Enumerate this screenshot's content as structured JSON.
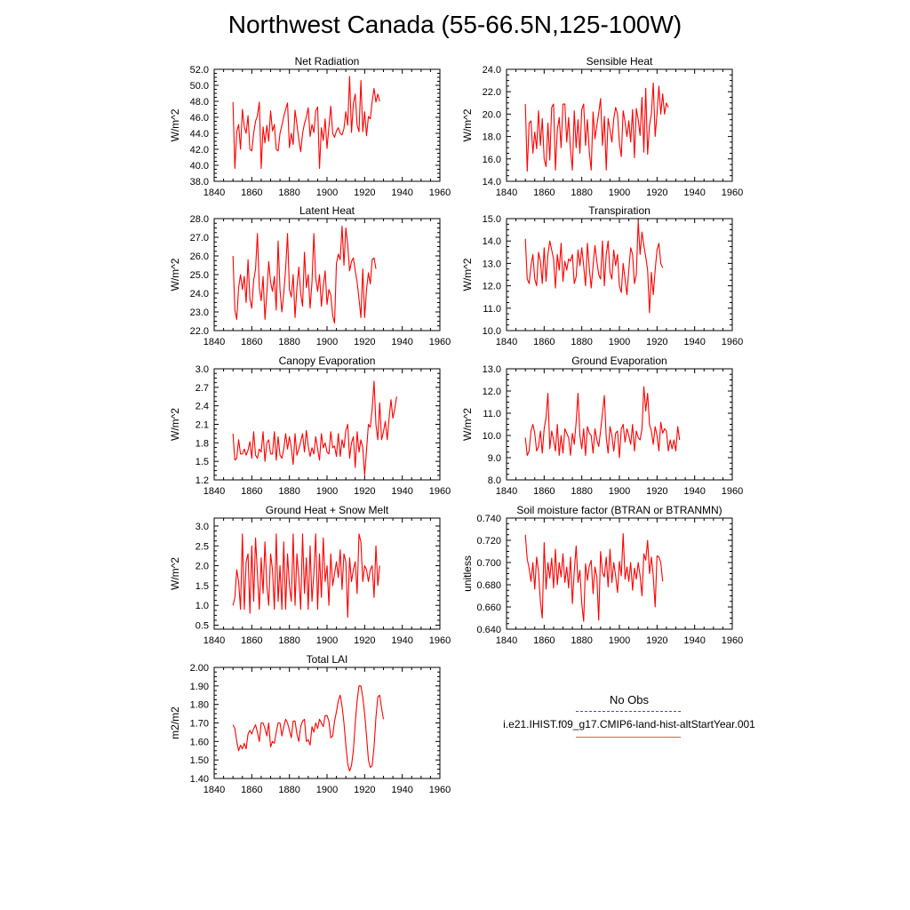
{
  "title": "Northwest Canada (55-66.5N,125-100W)",
  "legend": {
    "obs_label": "No Obs",
    "obs_color": "#4a4ab0",
    "case_label": "i.e21.IHIST.f09_g17.CMIP6-land-hist-altStartYear.001",
    "case_color": "#e85a5a"
  },
  "line_color": "#ff0000",
  "chart_data": [
    {
      "type": "line",
      "title": "Net Radiation",
      "ylabel": "W/m^2",
      "xlim": [
        1840,
        1960
      ],
      "xticks": [
        1840,
        1860,
        1880,
        1900,
        1920,
        1940,
        1960
      ],
      "ylim": [
        38,
        52
      ],
      "yticks": [
        "38.0",
        "40.0",
        "42.0",
        "44.0",
        "46.0",
        "48.0",
        "50.0",
        "52.0"
      ],
      "x_start": 1850,
      "values": [
        47.9,
        39.6,
        44.2,
        45.1,
        42.0,
        47.0,
        44.8,
        44.0,
        46.2,
        42.0,
        41.8,
        44.0,
        45.5,
        46.2,
        47.9,
        39.6,
        44.8,
        42.8,
        45.0,
        43.0,
        46.8,
        44.3,
        45.1,
        42.0,
        41.8,
        44.0,
        45.0,
        46.1,
        47.0,
        47.8,
        42.2,
        44.0,
        42.6,
        46.9,
        45.1,
        43.2,
        41.7,
        44.0,
        45.2,
        46.0,
        47.2,
        43.6,
        45.1,
        44.1,
        46.8,
        47.3,
        39.6,
        44.7,
        43.1,
        45.8,
        42.1,
        44.8,
        47.4,
        44.0,
        43.5,
        44.3,
        44.7,
        44.0,
        43.8,
        44.6,
        46.7,
        45.0,
        51.1,
        44.1,
        47.7,
        48.9,
        45.0,
        44.2,
        50.6,
        44.2,
        46.7,
        43.7,
        46.1,
        45.8,
        48.0,
        49.6,
        47.9,
        48.9,
        48.0
      ]
    },
    {
      "type": "line",
      "title": "Sensible Heat",
      "ylabel": "W/m^2",
      "xlim": [
        1840,
        1960
      ],
      "xticks": [
        1840,
        1860,
        1880,
        1900,
        1920,
        1940,
        1960
      ],
      "ylim": [
        14,
        24
      ],
      "yticks": [
        "14.0",
        "16.0",
        "18.0",
        "20.0",
        "22.0",
        "24.0"
      ],
      "x_start": 1850,
      "values": [
        20.9,
        14.9,
        19.2,
        19.4,
        16.5,
        18.4,
        16.9,
        20.3,
        17.2,
        19.6,
        16.0,
        15.3,
        19.2,
        15.9,
        20.6,
        20.9,
        15.0,
        18.6,
        19.7,
        17.0,
        20.9,
        20.9,
        17.5,
        19.7,
        16.8,
        15.0,
        20.3,
        17.0,
        19.5,
        16.5,
        20.4,
        20.9,
        17.2,
        19.5,
        16.6,
        15.0,
        20.2,
        17.8,
        19.0,
        20.1,
        21.4,
        17.2,
        19.8,
        15.0,
        19.6,
        18.6,
        17.5,
        19.6,
        20.6,
        20.0,
        17.4,
        16.2,
        20.3,
        19.3,
        18.0,
        19.4,
        17.5,
        20.4,
        16.1,
        20.5,
        19.5,
        18.1,
        21.5,
        16.6,
        22.3,
        16.4,
        19.0,
        20.0,
        22.8,
        18.0,
        20.0,
        22.5,
        20.0,
        21.8,
        20.0,
        21.0,
        20.6
      ]
    },
    {
      "type": "line",
      "title": "Latent Heat",
      "ylabel": "W/m^2",
      "xlim": [
        1840,
        1960
      ],
      "xticks": [
        1840,
        1860,
        1880,
        1900,
        1920,
        1940,
        1960
      ],
      "ylim": [
        22,
        28
      ],
      "yticks": [
        "22.0",
        "23.0",
        "24.0",
        "25.0",
        "26.0",
        "27.0",
        "28.0"
      ],
      "x_start": 1850,
      "values": [
        26.0,
        23.1,
        22.6,
        24.3,
        25.0,
        24.2,
        24.9,
        23.5,
        25.8,
        23.7,
        23.2,
        24.7,
        25.3,
        27.2,
        24.3,
        23.6,
        24.9,
        22.6,
        24.0,
        25.7,
        24.6,
        24.1,
        24.9,
        23.1,
        26.8,
        24.2,
        23.0,
        24.0,
        25.3,
        27.2,
        24.2,
        23.8,
        25.0,
        22.7,
        24.3,
        25.4,
        24.0,
        23.3,
        26.2,
        24.3,
        25.0,
        23.2,
        24.6,
        27.2,
        24.8,
        24.1,
        25.0,
        23.3,
        24.4,
        25.2,
        23.4,
        24.2,
        23.9,
        22.8,
        22.4,
        25.6,
        26.1,
        25.8,
        27.6,
        25.5,
        27.5,
        26.6,
        25.2,
        25.7,
        25.9,
        25.2,
        24.6,
        23.7,
        22.7,
        25.3,
        22.7,
        24.2,
        25.1,
        24.5,
        25.8,
        25.9,
        25.3
      ]
    },
    {
      "type": "line",
      "title": "Transpiration",
      "ylabel": "W/m^2",
      "xlim": [
        1840,
        1960
      ],
      "xticks": [
        1840,
        1860,
        1880,
        1900,
        1920,
        1940,
        1960
      ],
      "ylim": [
        10,
        15
      ],
      "yticks": [
        "10.0",
        "11.0",
        "12.0",
        "13.0",
        "14.0",
        "15.0"
      ],
      "x_start": 1850,
      "values": [
        14.1,
        12.3,
        12.1,
        12.9,
        13.4,
        12.3,
        12.0,
        13.5,
        13.1,
        12.1,
        13.7,
        12.2,
        13.4,
        14.0,
        13.6,
        13.2,
        11.9,
        13.4,
        12.7,
        13.9,
        12.2,
        13.1,
        12.7,
        13.2,
        13.1,
        13.4,
        12.1,
        12.4,
        13.6,
        12.9,
        13.7,
        12.9,
        12.0,
        13.9,
        12.8,
        11.9,
        12.9,
        13.8,
        13.1,
        12.5,
        12.3,
        14.0,
        12.0,
        13.4,
        14.0,
        12.6,
        12.3,
        13.6,
        12.9,
        13.4,
        12.0,
        11.7,
        13.0,
        12.3,
        11.6,
        12.7,
        13.7,
        13.4,
        12.1,
        12.5,
        14.9,
        13.4,
        14.4,
        13.8,
        13.3,
        12.7,
        10.8,
        12.6,
        11.6,
        12.7,
        13.6,
        13.9,
        13.0,
        12.8
      ]
    },
    {
      "type": "line",
      "title": "Canopy Evaporation",
      "ylabel": "W/m^2",
      "xlim": [
        1840,
        1960
      ],
      "xticks": [
        1840,
        1860,
        1880,
        1900,
        1920,
        1940,
        1960
      ],
      "ylim": [
        1.2,
        3.0
      ],
      "yticks": [
        "1.2",
        "1.5",
        "1.8",
        "2.1",
        "2.4",
        "2.7",
        "3.0"
      ],
      "x_start": 1850,
      "values": [
        1.95,
        1.52,
        1.55,
        1.85,
        1.62,
        1.62,
        1.7,
        1.6,
        1.68,
        1.82,
        1.55,
        1.98,
        1.6,
        1.55,
        1.7,
        1.65,
        1.98,
        1.5,
        1.8,
        1.85,
        1.62,
        1.62,
        1.98,
        1.52,
        1.9,
        1.6,
        1.55,
        1.7,
        1.95,
        1.7,
        1.9,
        1.72,
        1.45,
        1.95,
        1.6,
        1.7,
        1.82,
        1.95,
        1.65,
        2.0,
        1.75,
        1.58,
        1.72,
        1.62,
        1.9,
        1.7,
        1.52,
        1.95,
        1.72,
        1.8,
        1.65,
        1.62,
        1.98,
        1.72,
        1.75,
        1.58,
        1.95,
        1.58,
        1.85,
        1.72,
        2.0,
        2.1,
        1.55,
        1.8,
        1.9,
        1.4,
        1.98,
        1.65,
        1.85,
        1.72,
        1.28,
        1.68,
        2.1,
        2.05,
        2.35,
        2.8,
        2.1,
        1.85,
        2.45,
        1.85,
        1.98,
        2.15,
        1.85,
        2.2,
        2.5,
        2.2,
        2.35,
        2.55
      ]
    },
    {
      "type": "line",
      "title": "Ground Evaporation",
      "ylabel": "W/m^2",
      "xlim": [
        1840,
        1960
      ],
      "xticks": [
        1840,
        1860,
        1880,
        1900,
        1920,
        1940,
        1960
      ],
      "ylim": [
        8,
        13
      ],
      "yticks": [
        "8.0",
        "9.0",
        "10.0",
        "11.0",
        "12.0",
        "13.0"
      ],
      "x_start": 1850,
      "values": [
        9.9,
        9.1,
        9.3,
        10.2,
        10.5,
        10.1,
        9.3,
        9.5,
        10.2,
        9.2,
        10.3,
        10.8,
        11.9,
        9.4,
        10.2,
        9.8,
        9.3,
        10.5,
        9.1,
        10.0,
        9.2,
        10.3,
        10.1,
        9.9,
        9.1,
        10.1,
        9.6,
        10.6,
        11.9,
        10.0,
        9.4,
        10.3,
        9.1,
        10.4,
        10.1,
        10.0,
        9.2,
        10.3,
        9.8,
        9.5,
        10.2,
        11.0,
        11.8,
        9.9,
        9.2,
        10.4,
        10.0,
        9.3,
        10.1,
        10.2,
        9.0,
        10.3,
        10.5,
        9.7,
        10.3,
        10.0,
        9.6,
        10.5,
        9.3,
        10.2,
        9.9,
        9.8,
        10.3,
        12.2,
        11.1,
        11.9,
        10.5,
        10.2,
        9.6,
        10.4,
        10.0,
        9.3,
        10.6,
        10.1,
        10.3,
        10.2,
        9.3,
        9.8,
        9.4,
        9.8,
        9.3,
        10.4,
        9.8
      ]
    },
    {
      "type": "line",
      "title": "Ground Heat + Snow Melt",
      "ylabel": "W/m^2",
      "xlim": [
        1840,
        1960
      ],
      "xticks": [
        1840,
        1860,
        1880,
        1900,
        1920,
        1940,
        1960
      ],
      "ylim": [
        0.4,
        3.2
      ],
      "yticks": [
        "0.5",
        "1.0",
        "1.5",
        "2.0",
        "2.5",
        "3.0"
      ],
      "x_start": 1850,
      "values": [
        1.0,
        1.2,
        1.9,
        1.6,
        0.9,
        2.8,
        0.9,
        2.1,
        2.3,
        0.8,
        2.5,
        1.1,
        2.7,
        1.8,
        0.9,
        2.2,
        1.3,
        2.6,
        1.5,
        1.0,
        2.3,
        1.9,
        0.9,
        2.8,
        1.1,
        2.0,
        0.9,
        2.6,
        0.9,
        2.3,
        1.5,
        1.1,
        2.8,
        1.0,
        2.3,
        1.7,
        0.9,
        2.8,
        1.3,
        2.2,
        0.9,
        2.5,
        1.1,
        1.8,
        2.8,
        0.9,
        2.3,
        1.2,
        2.7,
        1.6,
        2.0,
        1.0,
        2.3,
        1.5,
        1.8,
        2.1,
        1.7,
        2.4,
        1.4,
        2.3,
        2.1,
        0.7,
        2.2,
        1.6,
        1.9,
        2.1,
        1.3,
        2.8,
        2.6,
        1.6,
        2.0,
        1.9,
        1.6,
        1.9,
        2.0,
        1.2,
        2.5,
        1.5,
        2.0
      ]
    },
    {
      "type": "line",
      "title": "Soil moisture factor (BTRAN or BTRANMN)",
      "ylabel": "unitless",
      "xlim": [
        1840,
        1960
      ],
      "xticks": [
        1840,
        1860,
        1880,
        1900,
        1920,
        1940,
        1960
      ],
      "ylim": [
        0.64,
        0.74
      ],
      "yticks": [
        "0.640",
        "0.660",
        "0.680",
        "0.700",
        "0.720",
        "0.740"
      ],
      "x_start": 1850,
      "values": [
        0.725,
        0.703,
        0.695,
        0.683,
        0.7,
        0.676,
        0.705,
        0.692,
        0.665,
        0.65,
        0.718,
        0.676,
        0.7,
        0.686,
        0.704,
        0.677,
        0.712,
        0.68,
        0.7,
        0.687,
        0.708,
        0.682,
        0.696,
        0.677,
        0.705,
        0.663,
        0.692,
        0.715,
        0.682,
        0.693,
        0.663,
        0.647,
        0.699,
        0.684,
        0.697,
        0.702,
        0.672,
        0.696,
        0.687,
        0.648,
        0.71,
        0.691,
        0.687,
        0.705,
        0.678,
        0.712,
        0.682,
        0.7,
        0.688,
        0.673,
        0.701,
        0.688,
        0.726,
        0.685,
        0.696,
        0.683,
        0.7,
        0.675,
        0.695,
        0.685,
        0.7,
        0.688,
        0.67,
        0.708,
        0.702,
        0.72,
        0.69,
        0.705,
        0.688,
        0.66,
        0.706,
        0.705,
        0.7,
        0.683
      ]
    },
    {
      "type": "line",
      "title": "Total LAI",
      "ylabel": "m2/m2",
      "xlim": [
        1840,
        1960
      ],
      "xticks": [
        1840,
        1860,
        1880,
        1900,
        1920,
        1940,
        1960
      ],
      "ylim": [
        1.4,
        2.0
      ],
      "yticks": [
        "1.40",
        "1.50",
        "1.60",
        "1.70",
        "1.80",
        "1.90",
        "2.00"
      ],
      "x_start": 1850,
      "values": [
        1.69,
        1.67,
        1.6,
        1.55,
        1.58,
        1.56,
        1.59,
        1.56,
        1.64,
        1.66,
        1.64,
        1.67,
        1.69,
        1.65,
        1.6,
        1.7,
        1.7,
        1.67,
        1.63,
        1.7,
        1.57,
        1.6,
        1.59,
        1.65,
        1.7,
        1.7,
        1.63,
        1.68,
        1.72,
        1.7,
        1.66,
        1.62,
        1.71,
        1.71,
        1.64,
        1.6,
        1.68,
        1.71,
        1.72,
        1.6,
        1.61,
        1.58,
        1.68,
        1.65,
        1.7,
        1.67,
        1.72,
        1.7,
        1.68,
        1.74,
        1.74,
        1.71,
        1.62,
        1.63,
        1.71,
        1.76,
        1.82,
        1.85,
        1.79,
        1.7,
        1.58,
        1.48,
        1.44,
        1.47,
        1.55,
        1.7,
        1.82,
        1.9,
        1.9,
        1.84,
        1.75,
        1.63,
        1.5,
        1.46,
        1.47,
        1.57,
        1.73,
        1.84,
        1.85,
        1.78,
        1.72
      ]
    }
  ]
}
